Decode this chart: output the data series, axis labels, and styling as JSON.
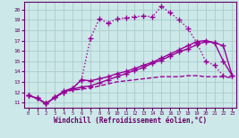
{
  "background_color": "#cce8e8",
  "grid_color": "#aacccc",
  "line_color": "#990099",
  "xlim": [
    -0.5,
    23.5
  ],
  "ylim": [
    10.5,
    20.8
  ],
  "xlabel": "Windchill (Refroidissement éolien,°C)",
  "xticks": [
    0,
    1,
    2,
    3,
    4,
    5,
    6,
    7,
    8,
    9,
    10,
    11,
    12,
    13,
    14,
    15,
    16,
    17,
    18,
    19,
    20,
    21,
    22,
    23
  ],
  "yticks": [
    11,
    12,
    13,
    14,
    15,
    16,
    17,
    18,
    19,
    20
  ],
  "series": [
    {
      "x": [
        0,
        1,
        2,
        3,
        4,
        5,
        6,
        7,
        8,
        9,
        10,
        11,
        12,
        13,
        14,
        15,
        16,
        17,
        18,
        19,
        20,
        21,
        22
      ],
      "y": [
        11.7,
        11.4,
        10.9,
        11.5,
        12.0,
        12.3,
        13.2,
        17.2,
        19.1,
        18.7,
        19.1,
        19.2,
        19.3,
        19.4,
        19.3,
        20.3,
        19.7,
        19.0,
        18.2,
        16.8,
        15.0,
        14.6,
        13.6
      ],
      "linestyle": ":",
      "marker": "+",
      "linewidth": 1.0,
      "markersize": 4
    },
    {
      "x": [
        0,
        1,
        2,
        3,
        4,
        5,
        6,
        7,
        8,
        9,
        10,
        11,
        12,
        13,
        14,
        15,
        16,
        17,
        18,
        19,
        20,
        21,
        22,
        23
      ],
      "y": [
        11.7,
        11.4,
        10.9,
        11.5,
        12.0,
        12.3,
        12.5,
        12.6,
        12.9,
        13.2,
        13.5,
        13.8,
        14.1,
        14.4,
        14.8,
        15.1,
        15.5,
        15.9,
        16.2,
        16.6,
        16.9,
        16.8,
        15.0,
        13.6
      ],
      "linestyle": "-",
      "marker": "+",
      "linewidth": 1.0,
      "markersize": 4
    },
    {
      "x": [
        0,
        1,
        2,
        3,
        4,
        5,
        6,
        7,
        8,
        9,
        10,
        11,
        12,
        13,
        14,
        15,
        16,
        17,
        18,
        19,
        20,
        21,
        22,
        23
      ],
      "y": [
        11.7,
        11.4,
        10.9,
        11.5,
        12.0,
        12.2,
        12.3,
        12.4,
        12.6,
        12.8,
        13.0,
        13.1,
        13.2,
        13.3,
        13.4,
        13.5,
        13.5,
        13.5,
        13.6,
        13.6,
        13.5,
        13.5,
        13.5,
        13.4
      ],
      "linestyle": "--",
      "marker": null,
      "linewidth": 1.0,
      "markersize": 0
    },
    {
      "x": [
        0,
        1,
        2,
        3,
        4,
        5,
        6,
        7,
        8,
        9,
        10,
        11,
        12,
        13,
        14,
        15,
        16,
        17,
        18,
        19,
        20,
        21,
        22,
        23
      ],
      "y": [
        11.7,
        11.4,
        10.9,
        11.5,
        12.1,
        12.4,
        13.2,
        13.1,
        13.3,
        13.5,
        13.8,
        14.0,
        14.3,
        14.6,
        14.9,
        15.3,
        15.7,
        16.1,
        16.5,
        16.9,
        17.0,
        16.8,
        16.5,
        13.6
      ],
      "linestyle": "-",
      "marker": "+",
      "linewidth": 1.0,
      "markersize": 4
    }
  ]
}
